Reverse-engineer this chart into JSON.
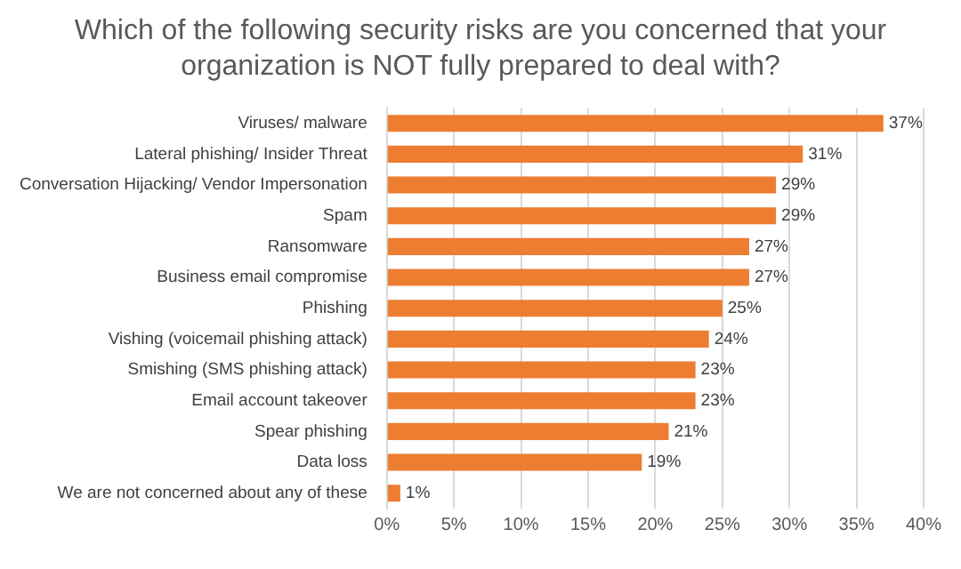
{
  "chart_data": {
    "type": "bar",
    "orientation": "horizontal",
    "title": "Which of the following security risks are you concerned that your organization is NOT fully prepared to deal with?",
    "categories": [
      "Viruses/ malware",
      "Lateral phishing/ Insider Threat",
      "Conversation Hijacking/ Vendor Impersonation",
      "Spam",
      "Ransomware",
      "Business email compromise",
      "Phishing",
      "Vishing (voicemail phishing attack)",
      "Smishing (SMS phishing attack)",
      "Email account takeover",
      "Spear phishing",
      "Data loss",
      "We are not concerned about any of these"
    ],
    "values": [
      37,
      31,
      29,
      29,
      27,
      27,
      25,
      24,
      23,
      23,
      21,
      19,
      1
    ],
    "value_labels": [
      "37%",
      "31%",
      "29%",
      "29%",
      "27%",
      "27%",
      "25%",
      "24%",
      "23%",
      "23%",
      "21%",
      "19%",
      "1%"
    ],
    "color": "#ed7d31",
    "xlim": [
      0,
      40
    ],
    "xticks": [
      {
        "value": 0,
        "label": "0%"
      },
      {
        "value": 5,
        "label": "5%"
      },
      {
        "value": 10,
        "label": "10%"
      },
      {
        "value": 15,
        "label": "15%"
      },
      {
        "value": 20,
        "label": "20%"
      },
      {
        "value": 25,
        "label": "25%"
      },
      {
        "value": 30,
        "label": "30%"
      },
      {
        "value": 35,
        "label": "35%"
      },
      {
        "value": 40,
        "label": "40%"
      }
    ],
    "grid": "x",
    "legend": false
  }
}
